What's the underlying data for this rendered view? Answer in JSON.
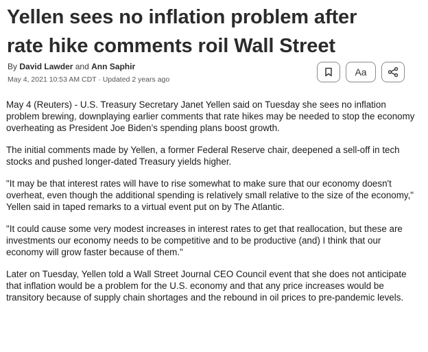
{
  "article": {
    "headline_line1": "Yellen sees no inflation problem after",
    "headline_line2": "rate hike comments roil Wall Street",
    "byline": {
      "prefix": "By",
      "author1": "David Lawder",
      "conjunction": "and",
      "author2": "Ann Saphir"
    },
    "dateline": "May 4, 2021 10:53 AM CDT · Updated 2 years ago",
    "toolbar": {
      "bookmark_icon": "bookmark-icon",
      "text_size_label": "Aa",
      "share_icon": "share-icon"
    },
    "paragraphs": [
      "May 4 (Reuters) - U.S. Treasury Secretary Janet Yellen said on Tuesday she sees no inflation problem brewing, downplaying earlier comments that rate hikes may be needed to stop the economy overheating as President Joe Biden’s spending plans boost growth.",
      "The initial comments made by Yellen, a former Federal Reserve chair, deepened a sell-off in tech stocks and pushed longer-dated Treasury yields higher.",
      "\"It may be that interest rates will have to rise somewhat to make sure that our economy doesn't overheat, even though the additional spending is relatively small relative to the size of the economy,\" Yellen said in taped remarks to a virtual event put on by The Atlantic.",
      "\"It could cause some very modest increases in interest rates to get that reallocation, but these are investments our economy needs to be competitive and to be productive (and) I think that our economy will grow faster because of them.\"",
      "Later on Tuesday, Yellen told a Wall Street Journal CEO Council event that she does not anticipate that inflation would be a problem for the U.S. economy and that any price increases would be transitory because of supply chain shortages and the rebound in oil prices to pre-pandemic levels."
    ]
  }
}
